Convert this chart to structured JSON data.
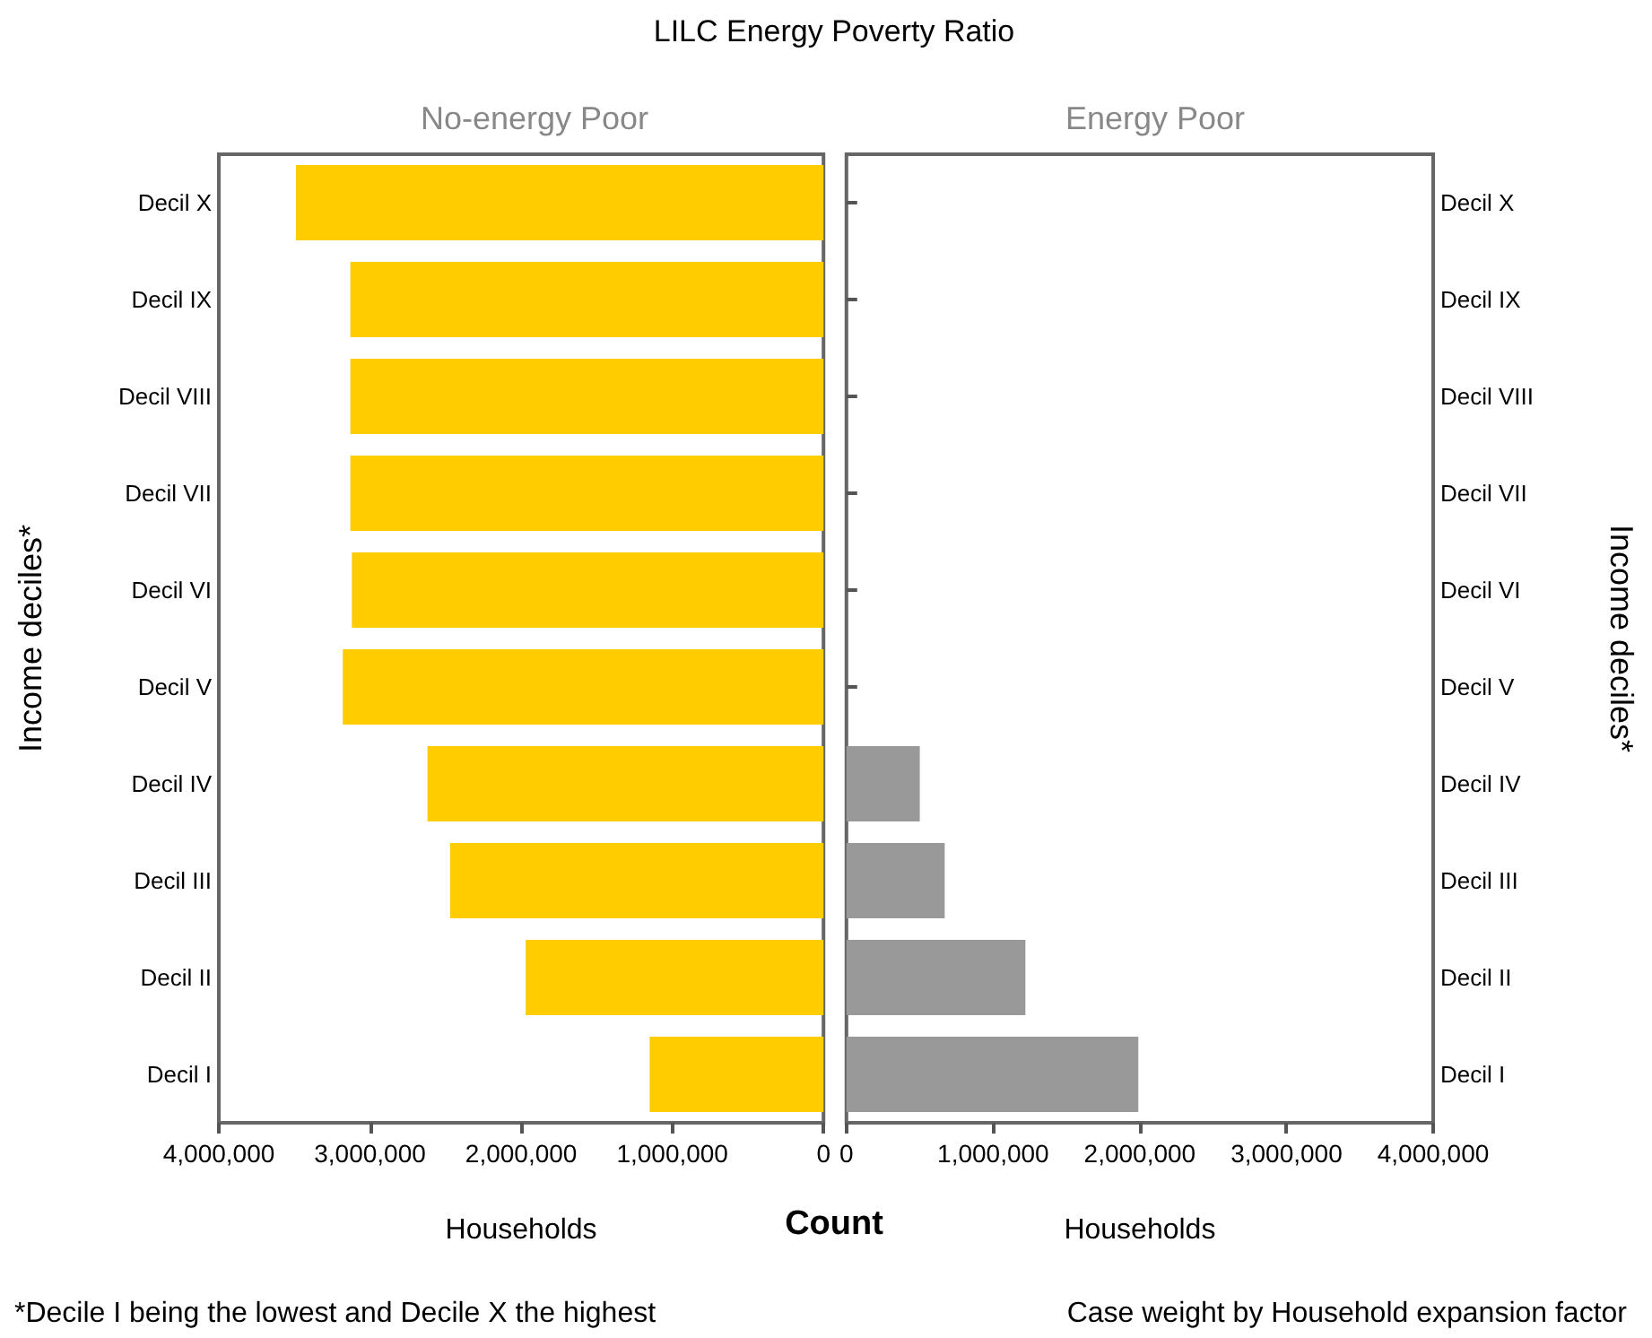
{
  "chart_data": [
    {
      "type": "bar",
      "orientation": "horizontal",
      "title": "No-energy Poor",
      "xlabel": "Households",
      "ylabel": "Income deciles*",
      "categories": [
        "Decil X",
        "Decil IX",
        "Decil VIII",
        "Decil VII",
        "Decil VI",
        "Decil V",
        "Decil IV",
        "Decil III",
        "Decil II",
        "Decil I"
      ],
      "values": [
        3490000,
        3130000,
        3130000,
        3130000,
        3120000,
        3180000,
        2620000,
        2470000,
        1970000,
        1150000
      ],
      "color": "#ffcc00",
      "xlim": [
        4000000,
        0
      ],
      "xticks": [
        {
          "value": 4000000,
          "label": "4,000,000"
        },
        {
          "value": 3000000,
          "label": "3,000,000"
        },
        {
          "value": 2000000,
          "label": "2,000,000"
        },
        {
          "value": 1000000,
          "label": "1,000,000"
        },
        0
      ],
      "grid": false,
      "annotations": [
        "LILC Energy Poverty Ratio",
        "Count",
        "*Decile I being the lowest and Decile X the highest"
      ]
    },
    {
      "type": "bar",
      "orientation": "horizontal",
      "title": "Energy Poor",
      "xlabel": "Households",
      "ylabel": "Income deciles*",
      "categories": [
        "Decil X",
        "Decil IX",
        "Decil VIII",
        "Decil VII",
        "Decil VI",
        "Decil V",
        "Decil IV",
        "Decil III",
        "Decil II",
        "Decil I"
      ],
      "values": [
        0,
        0,
        0,
        0,
        0,
        0,
        500000,
        670000,
        1220000,
        1990000
      ],
      "color": "#999999",
      "xlim": [
        0,
        4000000
      ],
      "xticks": [
        0,
        {
          "value": 1000000,
          "label": "1,000,000"
        },
        {
          "value": 2000000,
          "label": "2,000,000"
        },
        {
          "value": 3000000,
          "label": "3,000,000"
        },
        {
          "value": 4000000,
          "label": "4,000,000"
        }
      ],
      "grid": false,
      "annotations": [
        "Case weight by Household expansion factor"
      ]
    }
  ]
}
